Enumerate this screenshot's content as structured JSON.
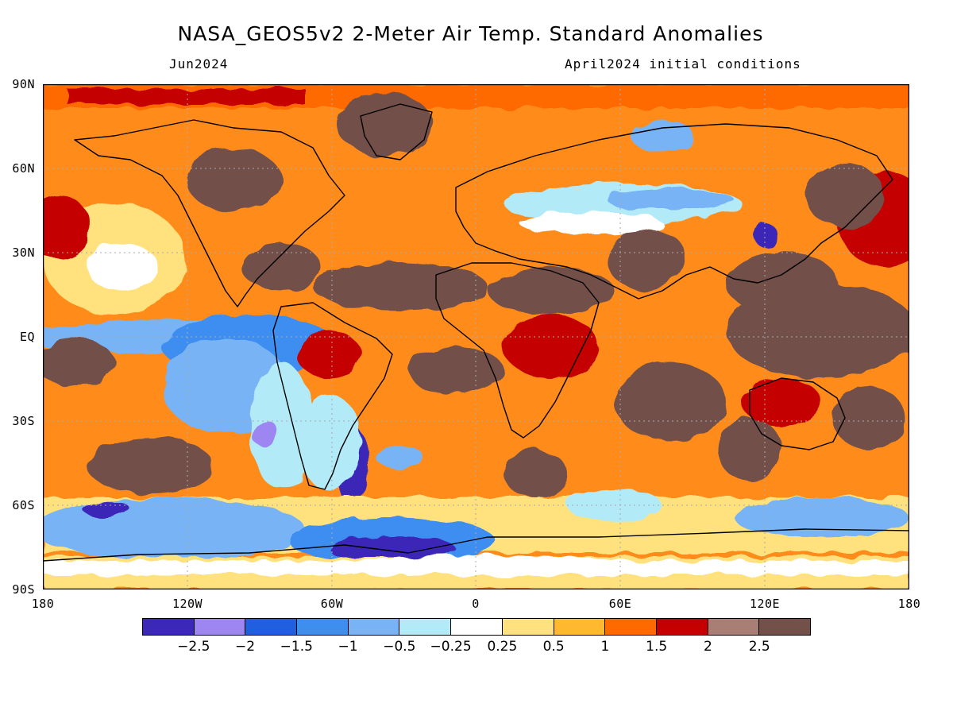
{
  "title": "NASA_GEOS5v2 2-Meter Air Temp. Standard Anomalies",
  "subtitle_left": "Jun2024",
  "subtitle_right": "April2024 initial conditions",
  "lat_labels": [
    "90N",
    "60N",
    "30N",
    "EQ",
    "30S",
    "60S",
    "90S"
  ],
  "lon_labels": [
    "180",
    "120W",
    "60W",
    "0",
    "60E",
    "120E",
    "180"
  ],
  "colorbar": {
    "colors": [
      "#3b28b8",
      "#9d86f2",
      "#1f5fe0",
      "#3e8ef0",
      "#78b4f5",
      "#b2ebf7",
      "#ffffff",
      "#ffe27e",
      "#ffb830",
      "#ff6a00",
      "#c40000",
      "#a97e74",
      "#735049"
    ],
    "labels": [
      "-2.5",
      "-2",
      "-1.5",
      "-1",
      "-0.5",
      "-0.25",
      "0.25",
      "0.5",
      "1",
      "1.5",
      "2",
      "2.5"
    ]
  },
  "colors": {
    "ocean_default": "#ff8c1a",
    "land_warm": "#735049",
    "cold": "#3e8ef0"
  }
}
